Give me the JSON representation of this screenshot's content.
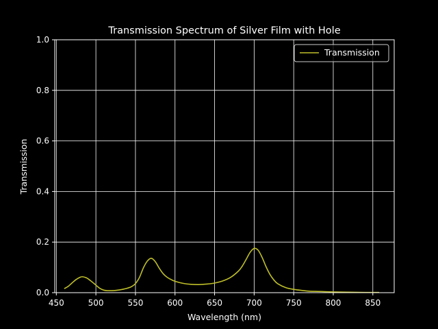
{
  "chart_data": {
    "type": "line",
    "title": "Transmission Spectrum of Silver Film with Hole",
    "xlabel": "Wavelength (nm)",
    "ylabel": "Transmission",
    "xlim": [
      448,
      877
    ],
    "ylim": [
      0,
      1.0
    ],
    "xticks": [
      "450",
      "500",
      "550",
      "600",
      "650",
      "700",
      "750",
      "800",
      "850"
    ],
    "yticks": [
      "0.0",
      "0.2",
      "0.4",
      "0.6",
      "0.8",
      "1.0"
    ],
    "grid": true,
    "legend_position": "top-right",
    "series": [
      {
        "name": "Transmission",
        "color": "#bfbf2a",
        "x": [
          460,
          465,
          470,
          475,
          480,
          483,
          487,
          490,
          495,
          500,
          505,
          510,
          515,
          520,
          525,
          530,
          535,
          540,
          545,
          550,
          555,
          560,
          565,
          570,
          575,
          580,
          585,
          590,
          595,
          600,
          610,
          620,
          630,
          640,
          650,
          660,
          670,
          680,
          685,
          690,
          695,
          700,
          705,
          710,
          715,
          720,
          725,
          730,
          740,
          750,
          760,
          770,
          780,
          790,
          800,
          820,
          840,
          858
        ],
        "y": [
          0.016,
          0.025,
          0.039,
          0.052,
          0.061,
          0.063,
          0.06,
          0.055,
          0.043,
          0.03,
          0.017,
          0.01,
          0.008,
          0.008,
          0.009,
          0.011,
          0.014,
          0.018,
          0.024,
          0.036,
          0.06,
          0.098,
          0.125,
          0.136,
          0.123,
          0.097,
          0.075,
          0.061,
          0.052,
          0.045,
          0.037,
          0.033,
          0.032,
          0.034,
          0.038,
          0.046,
          0.06,
          0.085,
          0.105,
          0.132,
          0.16,
          0.175,
          0.168,
          0.14,
          0.103,
          0.072,
          0.05,
          0.035,
          0.02,
          0.013,
          0.009,
          0.006,
          0.005,
          0.004,
          0.003,
          0.002,
          0.001,
          0.001
        ]
      }
    ]
  }
}
